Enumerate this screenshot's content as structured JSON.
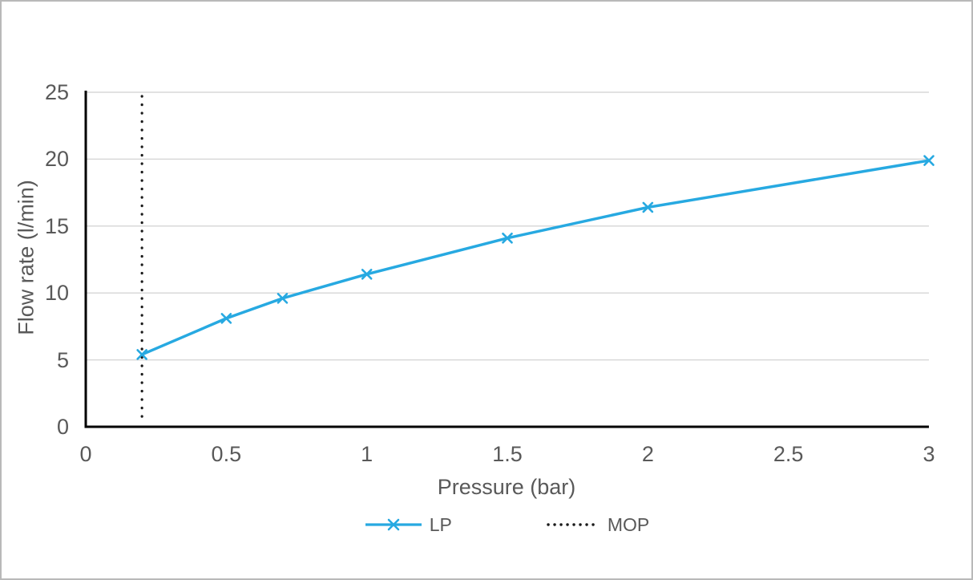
{
  "chart_data": {
    "type": "line",
    "title": "",
    "xlabel": "Pressure (bar)",
    "ylabel": "Flow rate (l/min)",
    "xlim": [
      0,
      3
    ],
    "ylim": [
      0,
      25
    ],
    "x_ticks": [
      0,
      0.5,
      1,
      1.5,
      2,
      2.5,
      3
    ],
    "x_tick_labels": [
      "0",
      "0.5",
      "1",
      "1.5",
      "2",
      "2.5",
      "3"
    ],
    "y_ticks": [
      0,
      5,
      10,
      15,
      20,
      25
    ],
    "y_tick_labels": [
      "0",
      "5",
      "10",
      "15",
      "20",
      "25"
    ],
    "grid": "horizontal-only",
    "legend_position": "bottom-center",
    "series": [
      {
        "name": "LP",
        "type": "line",
        "marker": "x",
        "color": "#27A9E1",
        "x": [
          0.2,
          0.5,
          0.7,
          1,
          1.5,
          2,
          3
        ],
        "y": [
          5.4,
          8.1,
          9.6,
          11.4,
          14.1,
          16.4,
          19.9
        ]
      },
      {
        "name": "MOP",
        "type": "vline-dotted",
        "color": "#1a1a1a",
        "x": 0.2,
        "y_span": [
          0,
          25
        ]
      }
    ],
    "colors": {
      "axis": "#000000",
      "gridline": "#d9d9d9",
      "text": "#595959",
      "frame_border": "#b9b9b9",
      "background": "#ffffff"
    }
  }
}
